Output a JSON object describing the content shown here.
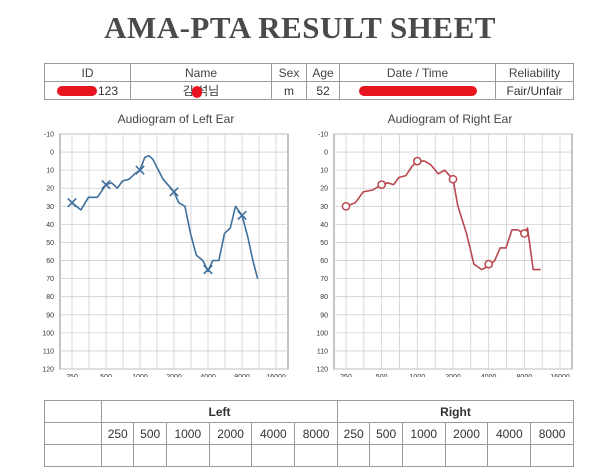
{
  "title": "AMA-PTA RESULT SHEET",
  "info": {
    "headers": [
      "ID",
      "Name",
      "Sex",
      "Age",
      "Date / Time",
      "Reliability"
    ],
    "id_value": "123",
    "name_value": "김 석님",
    "sex": "m",
    "age": "52",
    "reliability": "Fair/Unfair"
  },
  "chart_data": [
    {
      "type": "line",
      "title": "Audiogram of Left Ear",
      "x_ticks": [
        "250",
        "500",
        "1000",
        "2000",
        "4000",
        "8000",
        "16000"
      ],
      "y_ticks": [
        "-10",
        "0",
        "10",
        "20",
        "30",
        "40",
        "50",
        "60",
        "70",
        "80",
        "90",
        "100",
        "110",
        "120"
      ],
      "ylim": [
        -10,
        120
      ],
      "y_inverted": true,
      "x_scale": "log",
      "grid": true,
      "color": "#3d6f9c",
      "marker": "x",
      "line": [
        [
          250,
          28
        ],
        [
          300,
          32
        ],
        [
          350,
          25
        ],
        [
          420,
          25
        ],
        [
          500,
          18
        ],
        [
          560,
          17
        ],
        [
          630,
          20
        ],
        [
          700,
          16
        ],
        [
          800,
          15
        ],
        [
          900,
          12
        ],
        [
          1000,
          10
        ],
        [
          1100,
          3
        ],
        [
          1200,
          2
        ],
        [
          1300,
          4
        ],
        [
          1400,
          8
        ],
        [
          1600,
          15
        ],
        [
          2000,
          22
        ],
        [
          2200,
          28
        ],
        [
          2500,
          30
        ],
        [
          2800,
          45
        ],
        [
          3150,
          57
        ],
        [
          3600,
          60
        ],
        [
          4000,
          66
        ],
        [
          4400,
          60
        ],
        [
          5000,
          60
        ],
        [
          5600,
          45
        ],
        [
          6300,
          42
        ],
        [
          7000,
          30
        ],
        [
          8000,
          35
        ],
        [
          9000,
          47
        ],
        [
          10000,
          60
        ],
        [
          11000,
          70
        ]
      ],
      "markers": [
        [
          250,
          28
        ],
        [
          500,
          18
        ],
        [
          1000,
          10
        ],
        [
          2000,
          22
        ],
        [
          4000,
          65
        ],
        [
          8000,
          35
        ]
      ]
    },
    {
      "type": "line",
      "title": "Audiogram of Right Ear",
      "x_ticks": [
        "250",
        "500",
        "1000",
        "2000",
        "4000",
        "8000",
        "16000"
      ],
      "y_ticks": [
        "-10",
        "0",
        "10",
        "20",
        "30",
        "40",
        "50",
        "60",
        "70",
        "80",
        "90",
        "100",
        "110",
        "120"
      ],
      "ylim": [
        -10,
        120
      ],
      "y_inverted": true,
      "x_scale": "log",
      "grid": true,
      "color": "#b8474f",
      "marker": "o",
      "line": [
        [
          250,
          30
        ],
        [
          300,
          28
        ],
        [
          350,
          22
        ],
        [
          420,
          21
        ],
        [
          500,
          18
        ],
        [
          560,
          17
        ],
        [
          630,
          18
        ],
        [
          700,
          14
        ],
        [
          800,
          13
        ],
        [
          900,
          8
        ],
        [
          1000,
          5
        ],
        [
          1150,
          5
        ],
        [
          1300,
          7
        ],
        [
          1500,
          12
        ],
        [
          1700,
          10
        ],
        [
          2000,
          15
        ],
        [
          2200,
          30
        ],
        [
          2600,
          45
        ],
        [
          3000,
          62
        ],
        [
          3500,
          65
        ],
        [
          4000,
          63
        ],
        [
          4500,
          60
        ],
        [
          5000,
          53
        ],
        [
          5600,
          53
        ],
        [
          6300,
          43
        ],
        [
          7000,
          43
        ],
        [
          8000,
          45
        ],
        [
          8500,
          42
        ],
        [
          9500,
          65
        ],
        [
          11000,
          65
        ]
      ],
      "markers": [
        [
          250,
          30
        ],
        [
          500,
          18
        ],
        [
          1000,
          5
        ],
        [
          2000,
          15
        ],
        [
          4000,
          62
        ],
        [
          8000,
          45
        ]
      ]
    }
  ],
  "results": {
    "left_label": "Left",
    "right_label": "Right",
    "frequencies": [
      "250",
      "500",
      "1000",
      "2000",
      "4000",
      "8000"
    ]
  }
}
